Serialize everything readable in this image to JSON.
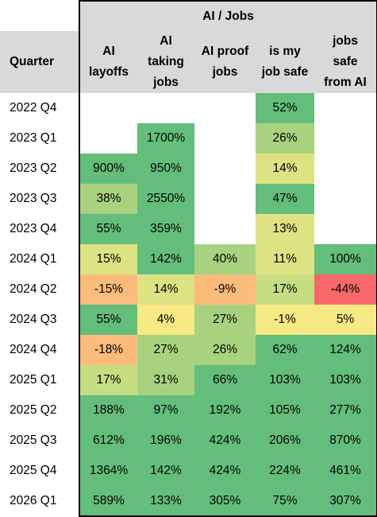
{
  "colors": {
    "green": "#63be7b",
    "light_green": "#a9d27f",
    "yellow_green": "#c6de81",
    "light_yellow": "#dde283",
    "yellow": "#f7e984",
    "orange": "#fbbc7b",
    "red": "#f8696b",
    "header_gray": "#d9d9d9"
  },
  "chart_data": {
    "type": "table",
    "title": "AI / Jobs",
    "row_header": "Quarter",
    "columns": [
      "AI layoffs",
      "AI taking jobs",
      "AI proof jobs",
      "is my job safe",
      "jobs safe from AI"
    ],
    "column_lines": [
      [
        "AI",
        "layoffs"
      ],
      [
        "AI",
        "taking",
        "jobs"
      ],
      [
        "AI proof",
        "jobs"
      ],
      [
        "is my",
        "job safe"
      ],
      [
        "jobs",
        "safe",
        "from AI"
      ]
    ],
    "rows": [
      {
        "quarter": "2022 Q4",
        "values": [
          "",
          "",
          "",
          "52%",
          ""
        ],
        "fills": [
          "#ffffff",
          "#ffffff",
          "#ffffff",
          "#63be7b",
          "#ffffff"
        ]
      },
      {
        "quarter": "2023 Q1",
        "values": [
          "",
          "1700%",
          "",
          "26%",
          ""
        ],
        "fills": [
          "#ffffff",
          "#63be7b",
          "#ffffff",
          "#a9d27f",
          "#ffffff"
        ]
      },
      {
        "quarter": "2023 Q2",
        "values": [
          "900%",
          "950%",
          "",
          "14%",
          ""
        ],
        "fills": [
          "#63be7b",
          "#63be7b",
          "#ffffff",
          "#dde283",
          "#ffffff"
        ]
      },
      {
        "quarter": "2023 Q3",
        "values": [
          "38%",
          "2550%",
          "",
          "47%",
          ""
        ],
        "fills": [
          "#a9d27f",
          "#63be7b",
          "#ffffff",
          "#63be7b",
          "#ffffff"
        ]
      },
      {
        "quarter": "2023 Q4",
        "values": [
          "55%",
          "359%",
          "",
          "13%",
          ""
        ],
        "fills": [
          "#63be7b",
          "#63be7b",
          "#ffffff",
          "#dde283",
          "#ffffff"
        ]
      },
      {
        "quarter": "2024 Q1",
        "values": [
          "15%",
          "142%",
          "40%",
          "11%",
          "100%"
        ],
        "fills": [
          "#dde283",
          "#63be7b",
          "#a9d27f",
          "#dde283",
          "#63be7b"
        ]
      },
      {
        "quarter": "2024 Q2",
        "values": [
          "-15%",
          "14%",
          "-9%",
          "17%",
          "-44%"
        ],
        "fills": [
          "#fbbc7b",
          "#dde283",
          "#fbbc7b",
          "#c6de81",
          "#f8696b"
        ]
      },
      {
        "quarter": "2024 Q3",
        "values": [
          "55%",
          "4%",
          "27%",
          "-1%",
          "5%"
        ],
        "fills": [
          "#63be7b",
          "#f7e984",
          "#a9d27f",
          "#f7e984",
          "#f7e984"
        ]
      },
      {
        "quarter": "2024 Q4",
        "values": [
          "-18%",
          "27%",
          "26%",
          "62%",
          "124%"
        ],
        "fills": [
          "#fbbc7b",
          "#a9d27f",
          "#a9d27f",
          "#63be7b",
          "#63be7b"
        ]
      },
      {
        "quarter": "2025 Q1",
        "values": [
          "17%",
          "31%",
          "66%",
          "103%",
          "103%"
        ],
        "fills": [
          "#c6de81",
          "#a9d27f",
          "#63be7b",
          "#63be7b",
          "#63be7b"
        ]
      },
      {
        "quarter": "2025 Q2",
        "values": [
          "188%",
          "97%",
          "192%",
          "105%",
          "277%"
        ],
        "fills": [
          "#63be7b",
          "#63be7b",
          "#63be7b",
          "#63be7b",
          "#63be7b"
        ]
      },
      {
        "quarter": "2025 Q3",
        "values": [
          "612%",
          "196%",
          "424%",
          "206%",
          "870%"
        ],
        "fills": [
          "#63be7b",
          "#63be7b",
          "#63be7b",
          "#63be7b",
          "#63be7b"
        ]
      },
      {
        "quarter": "2025 Q4",
        "values": [
          "1364%",
          "142%",
          "424%",
          "224%",
          "461%"
        ],
        "fills": [
          "#63be7b",
          "#63be7b",
          "#63be7b",
          "#63be7b",
          "#63be7b"
        ]
      },
      {
        "quarter": "2026 Q1",
        "values": [
          "589%",
          "133%",
          "305%",
          "75%",
          "307%"
        ],
        "fills": [
          "#63be7b",
          "#63be7b",
          "#63be7b",
          "#63be7b",
          "#63be7b"
        ]
      }
    ]
  }
}
